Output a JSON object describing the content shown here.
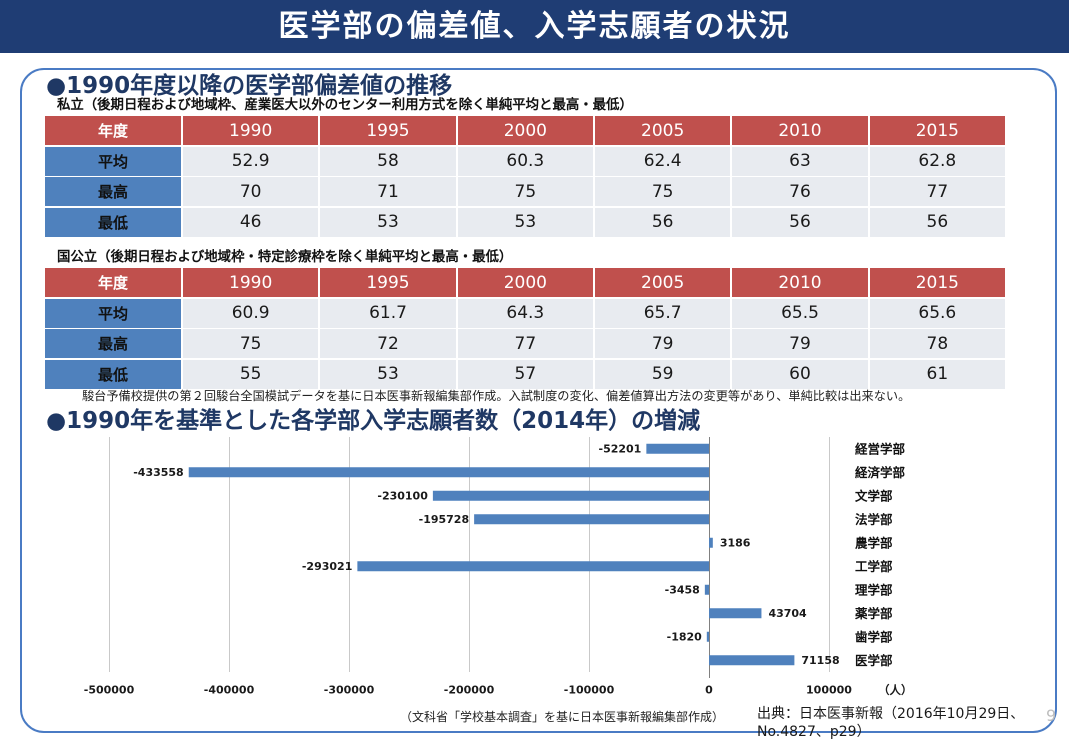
{
  "title": "医学部の偏差値、入学志願者の状況",
  "section1": {
    "heading": "●1990年度以降の医学部偏差値の推移",
    "note": "駿台予備校提供の第２回駿台全国模試データを基に日本医事新報編集部作成。入試制度の変化、偏差値算出方法の変更等があり、単純比較は出来ない。"
  },
  "section2": {
    "heading": "●1990年を基準とした各学部入学志願者数（2014年）の増減",
    "source_note": "（文科省「学校基本調査」を基に日本医事新報編集部作成）"
  },
  "citation": {
    "line1": "出典：日本医事新報（2016年10月29日、",
    "line2": "No.4827、p29）"
  },
  "page_number": "9",
  "colors": {
    "banner": "#1f3d74",
    "frame": "#4a7bc4",
    "heading": "#1f3864",
    "table_header": "#c0504d",
    "row_label": "#4f81bd",
    "table_cell": "#e8ebf0",
    "bar": "#4f81bd"
  },
  "chart_data": [
    {
      "type": "table",
      "caption": "私立（後期日程および地域枠、産業医大以外のセンター利用方式を除く単純平均と最高・最低）",
      "columns": [
        "年度",
        "1990",
        "1995",
        "2000",
        "2005",
        "2010",
        "2015"
      ],
      "rows": [
        {
          "label": "平均",
          "values": [
            52.9,
            58,
            60.3,
            62.4,
            63,
            62.8
          ]
        },
        {
          "label": "最高",
          "values": [
            70,
            71,
            75,
            75,
            76,
            77
          ]
        },
        {
          "label": "最低",
          "values": [
            46,
            53,
            53,
            56,
            56,
            56
          ]
        }
      ]
    },
    {
      "type": "table",
      "caption": "国公立（後期日程および地域枠・特定診療枠を除く単純平均と最高・最低）",
      "columns": [
        "年度",
        "1990",
        "1995",
        "2000",
        "2005",
        "2010",
        "2015"
      ],
      "rows": [
        {
          "label": "平均",
          "values": [
            60.9,
            61.7,
            64.3,
            65.7,
            65.5,
            65.6
          ]
        },
        {
          "label": "最高",
          "values": [
            75,
            72,
            77,
            79,
            79,
            78
          ]
        },
        {
          "label": "最低",
          "values": [
            55,
            53,
            57,
            59,
            60,
            61
          ]
        }
      ]
    },
    {
      "type": "bar",
      "orientation": "horizontal",
      "categories": [
        "経営学部",
        "経済学部",
        "文学部",
        "法学部",
        "農学部",
        "工学部",
        "理学部",
        "薬学部",
        "歯学部",
        "医学部"
      ],
      "values": [
        -52201,
        -433558,
        -230100,
        -195728,
        3186,
        -293021,
        -3458,
        43704,
        -1820,
        71158
      ],
      "xlabel": "（人）",
      "xlim": [
        -500000,
        100000
      ],
      "xticks": [
        -500000,
        -400000,
        -300000,
        -200000,
        -100000,
        0,
        100000
      ],
      "grid": true,
      "data_labels": true
    }
  ]
}
